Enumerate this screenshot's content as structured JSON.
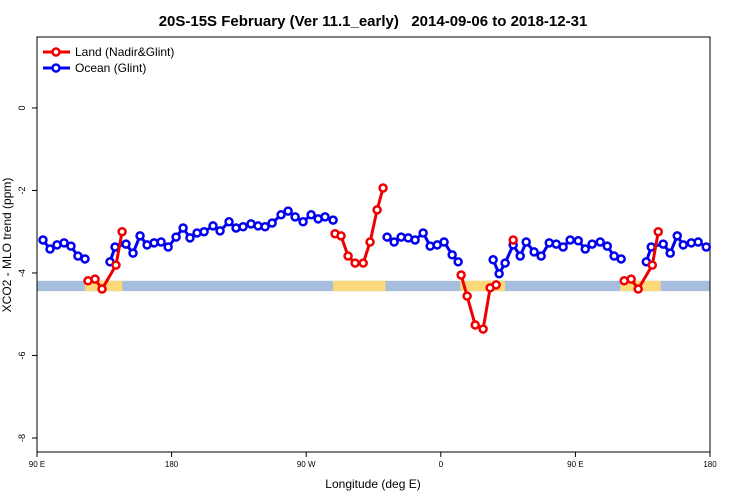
{
  "chart_data": {
    "type": "line",
    "title": "20S-15S February (Ver 11.1_early)   2014-09-06 to 2018-12-31",
    "x_label": "Longitude (deg E)",
    "y_label": "XCO2 - MLO trend (ppm)",
    "xlim": [
      90,
      540
    ],
    "xticks": [
      {
        "value": 90,
        "label": "90 E"
      },
      {
        "value": 180,
        "label": "180"
      },
      {
        "value": 270,
        "label": "90 W"
      },
      {
        "value": 360,
        "label": "0"
      },
      {
        "value": 450,
        "label": "90 E"
      },
      {
        "value": 540,
        "label": "180"
      }
    ],
    "ylim": [
      -8.34,
      1.72
    ],
    "yticks": [
      0,
      -2,
      -4,
      -6,
      -8
    ],
    "legend": "top-left",
    "surface_strip": {
      "ylim": [
        -4.44,
        -4.19
      ],
      "ocean_color": "#a7bddd",
      "land_color": "#fbd97a",
      "land_ranges": [
        [
          122,
          147
        ],
        [
          288,
          323
        ],
        [
          373,
          403
        ],
        [
          480,
          507
        ]
      ]
    },
    "series": [
      {
        "name": "Land (Nadir&Glint)",
        "color": "#ee0000",
        "x": [
          124.1,
          128.8,
          133.5,
          142.8,
          146.9,
          null,
          289.3,
          293.3,
          298.0,
          302.7,
          308.1,
          312.7,
          317.4,
          321.4,
          null,
          373.6,
          377.6,
          383.0,
          388.3,
          393.0,
          397.0,
          null,
          408.4,
          null,
          482.6,
          487.3,
          492.0,
          501.4,
          505.4
        ],
        "values": [
          -4.19,
          -4.15,
          -4.39,
          -3.81,
          -3.0,
          null,
          -3.05,
          -3.1,
          -3.59,
          -3.76,
          -3.76,
          -3.25,
          -2.47,
          -1.94,
          null,
          -4.05,
          -4.56,
          -5.26,
          -5.36,
          -4.36,
          -4.29,
          null,
          -3.2,
          null,
          -4.19,
          -4.15,
          -4.39,
          -3.81,
          -3.0
        ]
      },
      {
        "name": "Ocean (Glint)",
        "color": "#0000ee",
        "x": [
          94.0,
          98.7,
          103.4,
          108.1,
          112.7,
          117.4,
          122.1,
          null,
          138.8,
          142.2,
          149.5,
          154.2,
          158.9,
          163.6,
          168.3,
          173.0,
          177.7,
          183.0,
          187.7,
          192.3,
          197.0,
          201.7,
          207.7,
          212.4,
          218.4,
          223.1,
          227.8,
          233.1,
          237.8,
          242.5,
          247.2,
          253.2,
          257.9,
          262.6,
          267.9,
          273.3,
          278.0,
          282.6,
          288.0,
          null,
          324.1,
          328.8,
          333.5,
          338.2,
          342.8,
          348.2,
          352.9,
          357.6,
          362.2,
          367.6,
          371.6,
          null,
          395.0,
          399.0,
          403.0,
          408.4,
          413.1,
          417.1,
          422.4,
          427.1,
          432.5,
          437.2,
          441.8,
          446.5,
          451.9,
          456.6,
          461.2,
          466.6,
          471.3,
          475.9,
          480.6,
          null,
          497.4,
          500.7,
          508.7,
          513.4,
          518.1,
          522.1,
          527.5,
          532.1,
          537.5
        ],
        "values": [
          -3.2,
          -3.42,
          -3.32,
          -3.27,
          -3.35,
          -3.59,
          -3.66,
          null,
          -3.73,
          -3.37,
          -3.3,
          -3.52,
          -3.1,
          -3.32,
          -3.27,
          -3.25,
          -3.37,
          -3.13,
          -2.91,
          -3.15,
          -3.03,
          -3.0,
          -2.86,
          -2.98,
          -2.76,
          -2.91,
          -2.88,
          -2.81,
          -2.86,
          -2.88,
          -2.79,
          -2.59,
          -2.5,
          -2.64,
          -2.76,
          -2.59,
          -2.69,
          -2.64,
          -2.72,
          null,
          -3.13,
          -3.25,
          -3.13,
          -3.15,
          -3.2,
          -3.03,
          -3.35,
          -3.32,
          -3.25,
          -3.56,
          -3.73,
          null,
          -3.68,
          -4.02,
          -3.76,
          -3.32,
          -3.59,
          -3.25,
          -3.49,
          -3.59,
          -3.27,
          -3.3,
          -3.37,
          -3.2,
          -3.22,
          -3.42,
          -3.3,
          -3.25,
          -3.35,
          -3.59,
          -3.66,
          null,
          -3.73,
          -3.37,
          -3.3,
          -3.52,
          -3.1,
          -3.32,
          -3.27,
          -3.25,
          -3.37
        ]
      }
    ]
  }
}
